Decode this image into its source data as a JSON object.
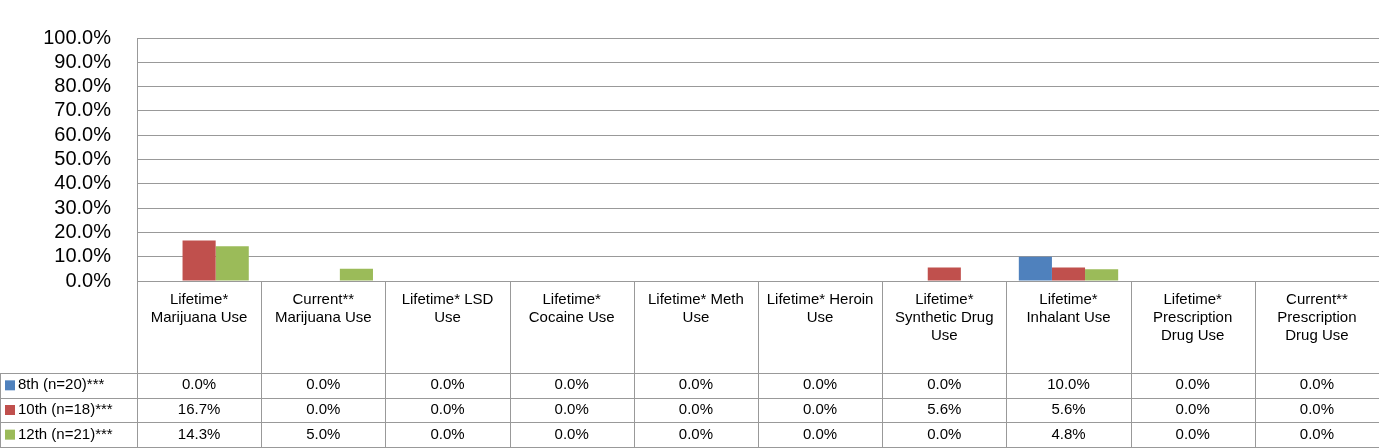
{
  "chart_data": {
    "type": "bar",
    "categories": [
      "Lifetime* Marijuana Use",
      "Current** Marijuana Use",
      "Lifetime* LSD Use",
      "Lifetime* Cocaine Use",
      "Lifetime* Meth Use",
      "Lifetime* Heroin Use",
      "Lifetime* Synthetic Drug Use",
      "Lifetime* Inhalant Use",
      "Lifetime* Prescription Drug Use",
      "Current** Prescription Drug Use"
    ],
    "series": [
      {
        "name": "8th (n=20)***",
        "color": "#4f81bd",
        "values": [
          0,
          0,
          0,
          0,
          0,
          0,
          0,
          10,
          0,
          0
        ],
        "value_labels": [
          "0.0%",
          "0.0%",
          "0.0%",
          "0.0%",
          "0.0%",
          "0.0%",
          "0.0%",
          "10.0%",
          "0.0%",
          "0.0%"
        ]
      },
      {
        "name": "10th (n=18)***",
        "color": "#c0504d",
        "values": [
          16.7,
          0,
          0,
          0,
          0,
          0,
          5.6,
          5.6,
          0,
          0
        ],
        "value_labels": [
          "16.7%",
          "0.0%",
          "0.0%",
          "0.0%",
          "0.0%",
          "0.0%",
          "5.6%",
          "5.6%",
          "0.0%",
          "0.0%"
        ]
      },
      {
        "name": "12th (n=21)***",
        "color": "#9bbb59",
        "values": [
          14.3,
          5,
          0,
          0,
          0,
          0,
          0,
          4.8,
          0,
          0
        ],
        "value_labels": [
          "14.3%",
          "5.0%",
          "0.0%",
          "0.0%",
          "0.0%",
          "0.0%",
          "0.0%",
          "4.8%",
          "0.0%",
          "0.0%"
        ]
      }
    ],
    "ylim": [
      0,
      100
    ],
    "yticks": [
      {
        "value": 0,
        "label": "0.0%"
      },
      {
        "value": 10,
        "label": "10.0%"
      },
      {
        "value": 20,
        "label": "20.0%"
      },
      {
        "value": 30,
        "label": "30.0%"
      },
      {
        "value": 40,
        "label": "40.0%"
      },
      {
        "value": 50,
        "label": "50.0%"
      },
      {
        "value": 60,
        "label": "60.0%"
      },
      {
        "value": 70,
        "label": "70.0%"
      },
      {
        "value": 80,
        "label": "80.0%"
      },
      {
        "value": 90,
        "label": "90.0%"
      },
      {
        "value": 100,
        "label": "100.0%"
      }
    ],
    "grid": "y",
    "legend": "bottom left"
  }
}
